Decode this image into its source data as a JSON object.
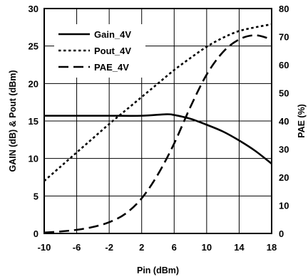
{
  "chart_data": {
    "type": "line",
    "xlabel": "Pin (dBm)",
    "ylabel": "GAIN (dB) & Pout (dBm)",
    "y2label": "PAE (%)",
    "xlim": [
      -10,
      18
    ],
    "ylim": [
      0,
      30
    ],
    "y2lim": [
      0,
      80
    ],
    "x_ticks": [
      "-10",
      "-6",
      "-2",
      "2",
      "6",
      "10",
      "14",
      "18"
    ],
    "y_ticks": [
      "0",
      "5",
      "10",
      "15",
      "20",
      "25",
      "30"
    ],
    "y2_ticks": [
      "0",
      "10",
      "20",
      "30",
      "40",
      "50",
      "60",
      "70",
      "80"
    ],
    "grid": true,
    "legend_position": "top-left",
    "series": [
      {
        "name": "Gain_4V",
        "axis": "left",
        "style": "solid",
        "x": [
          -10,
          -6,
          -2,
          2,
          5,
          6,
          8,
          10,
          12,
          14,
          16,
          18
        ],
        "y": [
          15.7,
          15.7,
          15.7,
          15.7,
          15.9,
          15.8,
          15.3,
          14.5,
          13.6,
          12.4,
          11.0,
          9.3
        ]
      },
      {
        "name": "Pout_4V",
        "axis": "left",
        "style": "dotted",
        "x": [
          -10,
          -8,
          -6,
          -4,
          -2,
          0,
          2,
          4,
          6,
          8,
          10,
          12,
          14,
          16,
          18
        ],
        "y": [
          7.0,
          8.9,
          10.8,
          12.7,
          14.6,
          16.4,
          18.2,
          20.0,
          21.8,
          23.4,
          24.9,
          26.1,
          27.0,
          27.5,
          27.9
        ]
      },
      {
        "name": "PAE_4V",
        "axis": "right",
        "style": "dashed",
        "x": [
          -10,
          -8,
          -6,
          -4,
          -2,
          0,
          2,
          4,
          6,
          8,
          10,
          12,
          14,
          16,
          18
        ],
        "y": [
          0.3,
          0.7,
          1.3,
          2.3,
          4.0,
          7.0,
          12.5,
          21.0,
          32.0,
          45.0,
          56.5,
          64.5,
          69.0,
          70.5,
          69.0
        ]
      }
    ]
  }
}
